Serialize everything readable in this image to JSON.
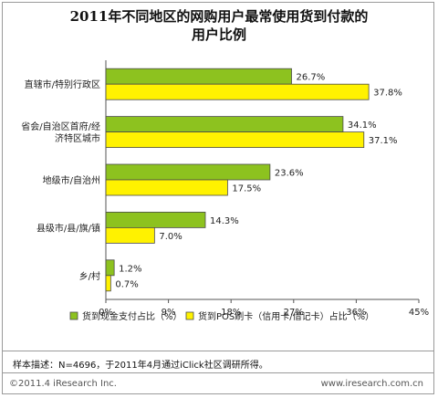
{
  "title_line1": "2011年不同地区的网购用户最常使用货到付款的",
  "title_line2": "用户比例",
  "note": "样本描述：N=4696，于2011年4月通过iClick社区调研所得。",
  "copyright": "©2011.4 iResearch Inc.",
  "website": "www.iresearch.com.cn",
  "colors": {
    "cash": "#8dc21f",
    "pos": "#fff200"
  },
  "chart_data": {
    "type": "bar",
    "orientation": "horizontal",
    "title": "2011年不同地区的网购用户最常使用货到付款的用户比例",
    "categories": [
      "直辖市/特别行政区",
      "省会/自治区首府/经济特区城市",
      "地级市/自治州",
      "县级市/县/旗/镇",
      "乡/村"
    ],
    "category_lines": [
      [
        "直辖市/特别行政区"
      ],
      [
        "省会/自治区首府/经",
        "济特区城市"
      ],
      [
        "地级市/自治州"
      ],
      [
        "县级市/县/旗/镇"
      ],
      [
        "乡/村"
      ]
    ],
    "series": [
      {
        "name": "货到现金支付占比（%）",
        "values": [
          26.7,
          34.1,
          23.6,
          14.3,
          1.2
        ],
        "labels": [
          "26.7%",
          "34.1%",
          "23.6%",
          "14.3%",
          "1.2%"
        ]
      },
      {
        "name": "货到POS刷卡（信用卡/借记卡）占比（%）",
        "values": [
          37.8,
          37.1,
          17.5,
          7.0,
          0.7
        ],
        "labels": [
          "37.8%",
          "37.1%",
          "17.5%",
          "7.0%",
          "0.7%"
        ]
      }
    ],
    "xlim": [
      0,
      45
    ],
    "xticks": [
      "0%",
      "9%",
      "18%",
      "27%",
      "36%",
      "45%"
    ],
    "legend_position": "bottom"
  }
}
